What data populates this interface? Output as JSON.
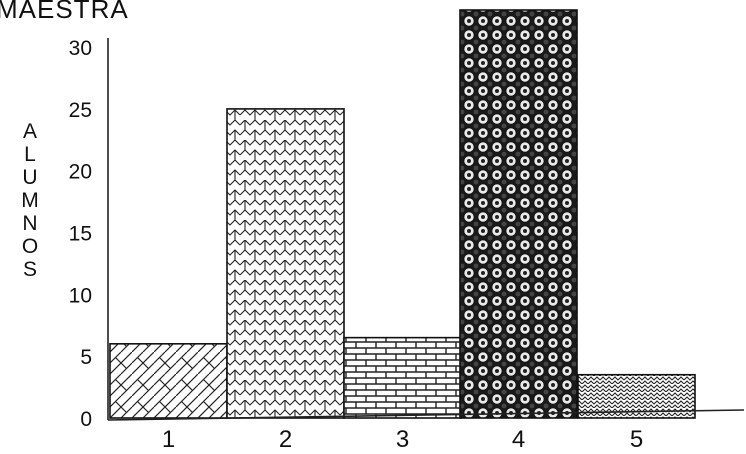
{
  "chart_data": {
    "type": "bar",
    "title": "MAESTRA",
    "ylabel": "ALUMNOS",
    "xlabel": "",
    "categories": [
      "1",
      "2",
      "3",
      "4",
      "5"
    ],
    "values": [
      6,
      25,
      6.5,
      33,
      3.5
    ],
    "ylim": [
      0,
      33
    ],
    "yticks": [
      0,
      5,
      10,
      15,
      20,
      25,
      30
    ],
    "grid": false,
    "legend": "none",
    "patterns": [
      "herringbone",
      "brick-zigzag",
      "brick",
      "dotted-circles",
      "zigzag"
    ]
  }
}
